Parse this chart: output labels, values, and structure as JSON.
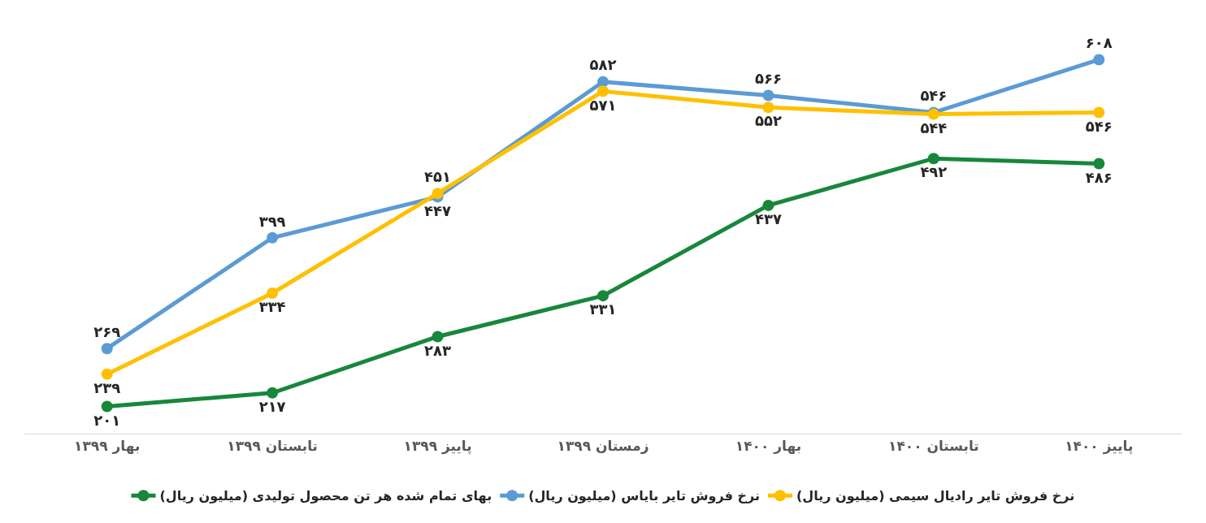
{
  "chart_data": {
    "type": "line",
    "categories": [
      "بهار ۱۳۹۹",
      "تابستان ۱۳۹۹",
      "پاییز ۱۳۹۹",
      "زمستان ۱۳۹۹",
      "بهار ۱۴۰۰",
      "تابستان ۱۴۰۰",
      "پاییز ۱۴۰۰"
    ],
    "series": [
      {
        "name": "بهای تمام شده هر تن محصول تولیدی (میلیون ریال)",
        "color": "#17873a",
        "values": [
          201,
          217,
          283,
          331,
          437,
          492,
          486
        ],
        "value_labels": [
          "۲۰۱",
          "۲۱۷",
          "۲۸۳",
          "۳۳۱",
          "۴۳۷",
          "۴۹۲",
          "۴۸۶"
        ]
      },
      {
        "name": "نرخ فروش تایر بایاس (میلیون ریال)",
        "color": "#5b9bd5",
        "values": [
          269,
          399,
          447,
          582,
          566,
          546,
          608
        ],
        "value_labels": [
          "۲۶۹",
          "۳۹۹",
          "۴۴۷",
          "۵۸۲",
          "۵۶۶",
          "۵۴۶",
          "۶۰۸"
        ]
      },
      {
        "name": "نرخ فروش تایر رادیال سیمی (میلیون ریال)",
        "color": "#ffc000",
        "values": [
          239,
          334,
          451,
          571,
          552,
          544,
          546
        ],
        "value_labels": [
          "۲۳۹",
          "۳۳۴",
          "۴۵۱",
          "۵۷۱",
          "۵۵۲",
          "۵۴۴",
          "۵۴۶"
        ]
      }
    ],
    "grid": false,
    "legend": "bottom",
    "marker": "circle",
    "line_style": "solid",
    "tick_labels": "x"
  }
}
